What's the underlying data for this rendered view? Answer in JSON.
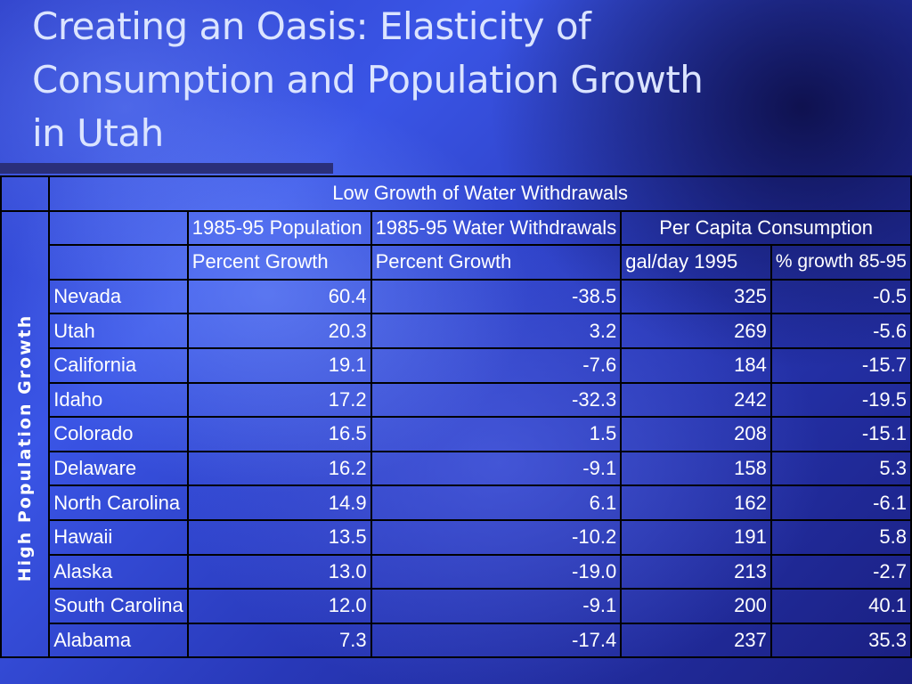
{
  "slide": {
    "title_line1": "Creating an Oasis: Elasticity of",
    "title_line2": "Consumption and Population Growth",
    "title_line3": "in Utah",
    "row_group_label": "High Population Growth",
    "column_group_label": "Low Growth of Water Withdrawals"
  },
  "table": {
    "header_row1": {
      "population": "1985-95 Population",
      "water": "1985-95 Water Withdrawals",
      "per_capita": "Per Capita Consumption"
    },
    "header_row2": {
      "population": "Percent Growth",
      "water": "Percent Growth",
      "gal_day": "gal/day 1995",
      "growth": "% growth 85-95"
    },
    "rows": [
      {
        "state": "Nevada",
        "pop_growth": "60.4",
        "water_growth": "-38.5",
        "gal_day": "325",
        "cons_growth": "-0.5"
      },
      {
        "state": "Utah",
        "pop_growth": "20.3",
        "water_growth": "3.2",
        "gal_day": "269",
        "cons_growth": "-5.6"
      },
      {
        "state": "California",
        "pop_growth": "19.1",
        "water_growth": "-7.6",
        "gal_day": "184",
        "cons_growth": "-15.7"
      },
      {
        "state": "Idaho",
        "pop_growth": "17.2",
        "water_growth": "-32.3",
        "gal_day": "242",
        "cons_growth": "-19.5"
      },
      {
        "state": "Colorado",
        "pop_growth": "16.5",
        "water_growth": "1.5",
        "gal_day": "208",
        "cons_growth": "-15.1"
      },
      {
        "state": "Delaware",
        "pop_growth": "16.2",
        "water_growth": "-9.1",
        "gal_day": "158",
        "cons_growth": "5.3"
      },
      {
        "state": "North Carolina",
        "pop_growth": "14.9",
        "water_growth": "6.1",
        "gal_day": "162",
        "cons_growth": "-6.1"
      },
      {
        "state": "Hawaii",
        "pop_growth": "13.5",
        "water_growth": "-10.2",
        "gal_day": "191",
        "cons_growth": "5.8"
      },
      {
        "state": "Alaska",
        "pop_growth": "13.0",
        "water_growth": "-19.0",
        "gal_day": "213",
        "cons_growth": "-2.7"
      },
      {
        "state": "South Carolina",
        "pop_growth": "12.0",
        "water_growth": "-9.1",
        "gal_day": "200",
        "cons_growth": "40.1"
      },
      {
        "state": "Alabama",
        "pop_growth": "7.3",
        "water_growth": "-17.4",
        "gal_day": "237",
        "cons_growth": "35.3"
      }
    ]
  }
}
